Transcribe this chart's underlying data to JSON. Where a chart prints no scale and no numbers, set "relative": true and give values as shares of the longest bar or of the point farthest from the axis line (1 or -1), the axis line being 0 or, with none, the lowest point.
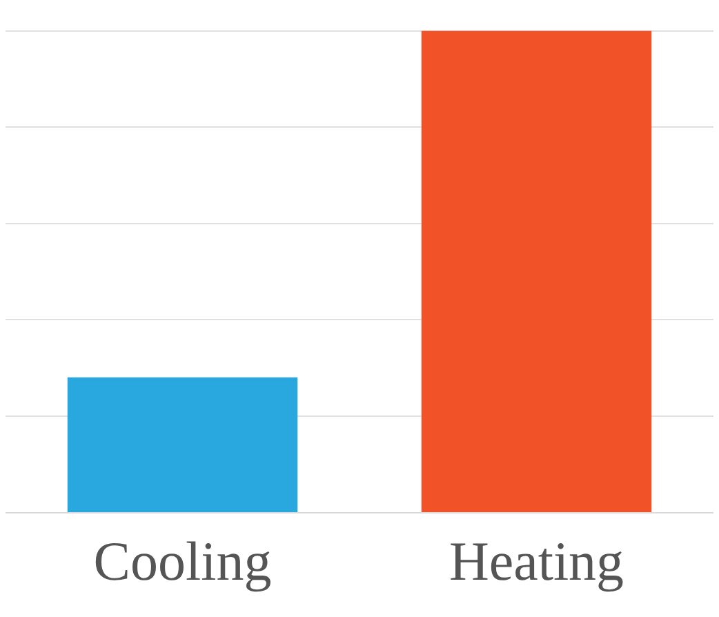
{
  "chart_data": {
    "type": "bar",
    "relative": true,
    "categories": [
      "Cooling",
      "Heating"
    ],
    "values": [
      0.28,
      1
    ],
    "colors": [
      "#29a8e0",
      "#f25227"
    ],
    "grid": "y"
  }
}
